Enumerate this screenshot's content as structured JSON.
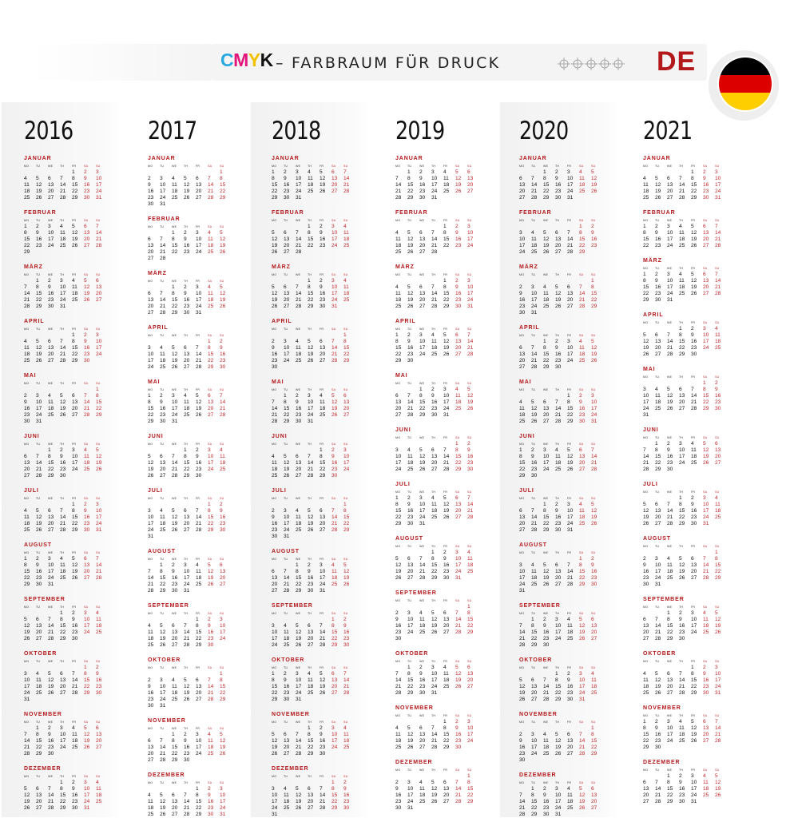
{
  "header": {
    "cmyk_letters": [
      {
        "letter": "C",
        "color": "#29a9df"
      },
      {
        "letter": "M",
        "color": "#e3157b"
      },
      {
        "letter": "Y",
        "color": "#f2c200"
      },
      {
        "letter": "K",
        "color": "#111111"
      }
    ],
    "title": "– FARBRAUM FÜR DRUCK",
    "country": "DE",
    "flag_colors": [
      "#000000",
      "#dd0000",
      "#ffce00"
    ]
  },
  "weekdays": [
    "MO",
    "TU",
    "WE",
    "TH",
    "FR",
    "SA",
    "SU"
  ],
  "accent_color": "#c1272d",
  "months": [
    "JANUAR",
    "FEBRUAR",
    "MÄRZ",
    "APRIL",
    "MAI",
    "JUNI",
    "JULI",
    "AUGUST",
    "SEPTEMBER",
    "OKTOBER",
    "NOVEMBER",
    "DEZEMBER"
  ],
  "years": [
    "2016",
    "2017",
    "2018",
    "2019",
    "2020",
    "2021"
  ]
}
